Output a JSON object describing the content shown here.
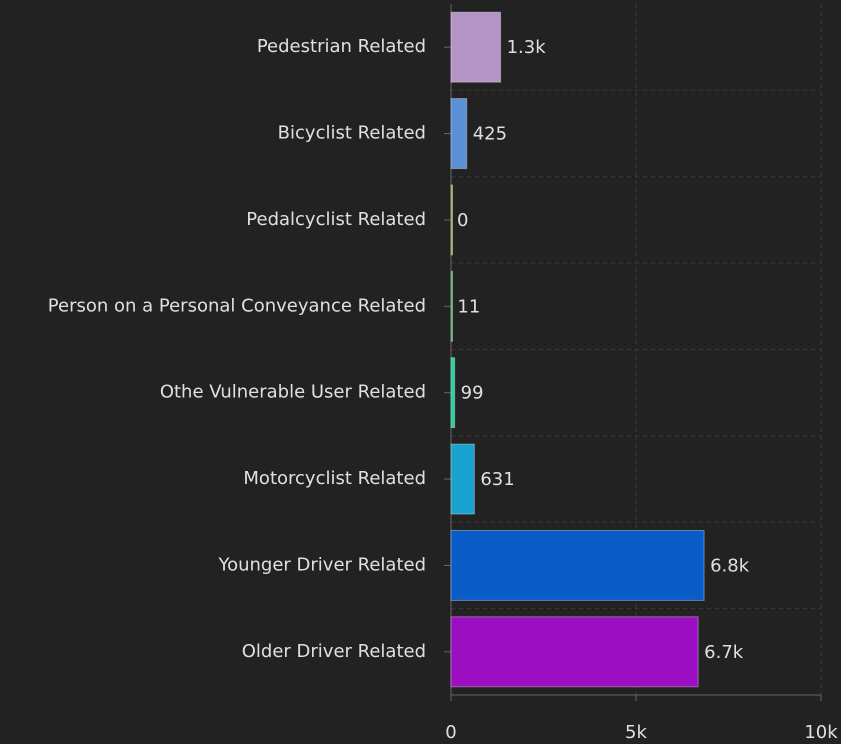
{
  "chart_data": {
    "type": "barh",
    "categories": [
      "Pedestrian Related",
      "Bicyclist Related",
      "Pedalcyclist Related",
      "Person on a Personal Conveyance Related",
      "Othe Vulnerable User Related",
      "Motorcyclist Related",
      "Younger Driver Related",
      "Older Driver Related"
    ],
    "values": [
      1340,
      425,
      0,
      11,
      99,
      631,
      6840,
      6680
    ],
    "value_labels": [
      "1.3k",
      "425",
      "0",
      "11",
      "99",
      "631",
      "6.8k",
      "6.7k"
    ],
    "colors": [
      "#b394c4",
      "#5b8fd6",
      "#8fb83a",
      "#4caf50",
      "#1fd1a0",
      "#1aa3d1",
      "#0a5cc8",
      "#9b0ec2"
    ],
    "xlim": [
      0,
      10000
    ],
    "xticks": [
      0,
      {
        "value": 5000,
        "label": "5k"
      },
      {
        "value": 10000,
        "label": "10k"
      }
    ],
    "grid": true
  }
}
